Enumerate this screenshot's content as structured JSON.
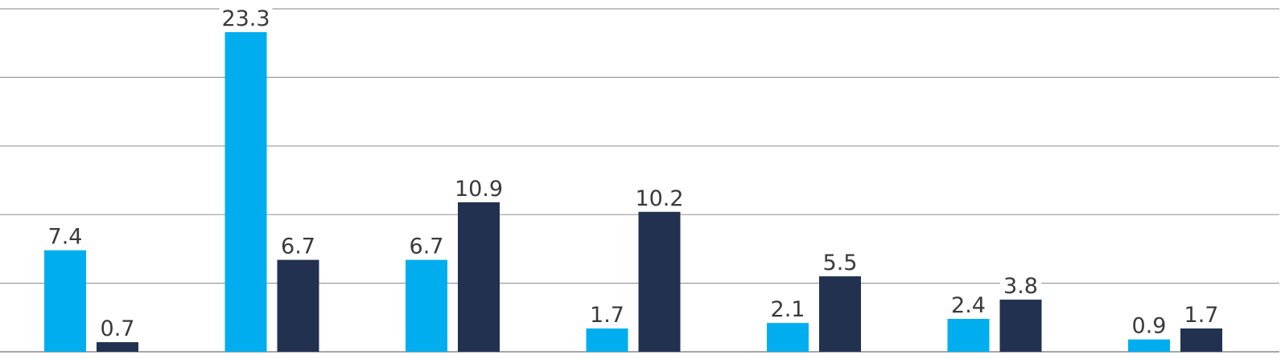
{
  "colors": {
    "background": "#ffffff",
    "gridline": "#9b9b9b",
    "series_light": "#00aeef",
    "series_dark": "#223150",
    "label_text": "#3a3a3a"
  },
  "chart_data": {
    "type": "bar",
    "title": "",
    "xlabel": "",
    "ylabel": "",
    "categories": [
      "",
      "",
      "",
      "",
      "",
      "",
      ""
    ],
    "ylim": [
      0,
      25
    ],
    "grid": true,
    "legend": "none",
    "series": [
      {
        "color": "#00aeef",
        "values": [
          7.4,
          23.3,
          6.7,
          1.7,
          2.1,
          2.4,
          0.9
        ],
        "labels": [
          "7.4",
          "23.3",
          "6.7",
          "1.7",
          "2.1",
          "2.4",
          "0.9"
        ]
      },
      {
        "color": "#223150",
        "values": [
          0.7,
          6.7,
          10.9,
          10.2,
          5.5,
          3.8,
          1.7
        ],
        "labels": [
          "0.7",
          "6.7",
          "10.9",
          "10.2",
          "5.5",
          "3.8",
          "1.7"
        ]
      }
    ]
  }
}
